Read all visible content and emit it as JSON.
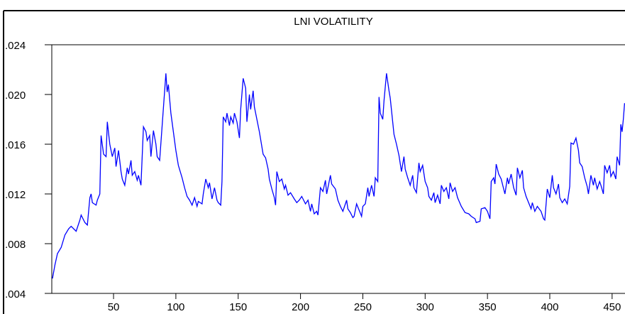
{
  "chart_data": {
    "type": "line",
    "title": "LNI VOLATILITY",
    "x": [
      1,
      3,
      5,
      8,
      11,
      14,
      16,
      20,
      23,
      24,
      27,
      29,
      31,
      32,
      33,
      36,
      37,
      39,
      40,
      42,
      44,
      45,
      47,
      49,
      51,
      52,
      54,
      56,
      57,
      59,
      61,
      62,
      64,
      65,
      67,
      69,
      70,
      72,
      74,
      76,
      77,
      79,
      80,
      82,
      84,
      85,
      87,
      89,
      92,
      93,
      94,
      96,
      98,
      100,
      102,
      105,
      107,
      109,
      111,
      113,
      115,
      117,
      118,
      121,
      122,
      124,
      126,
      127,
      129,
      131,
      133,
      134,
      136,
      137,
      138,
      140,
      141,
      143,
      144,
      146,
      147,
      149,
      151,
      152,
      154,
      156,
      157,
      159,
      160,
      162,
      163,
      165,
      167,
      170,
      172,
      174,
      175,
      177,
      179,
      180,
      181,
      183,
      185,
      187,
      188,
      190,
      192,
      195,
      197,
      199,
      201,
      204,
      206,
      208,
      209,
      211,
      213,
      214,
      216,
      218,
      220,
      221,
      224,
      225,
      228,
      230,
      232,
      234,
      237,
      238,
      240,
      242,
      243,
      245,
      247,
      249,
      250,
      252,
      254,
      255,
      257,
      259,
      260,
      262,
      263,
      264,
      266,
      267,
      269,
      271,
      272,
      275,
      277,
      279,
      281,
      283,
      284,
      286,
      288,
      290,
      291,
      293,
      295,
      296,
      298,
      300,
      302,
      303,
      305,
      307,
      308,
      310,
      312,
      313,
      315,
      317,
      319,
      320,
      322,
      324,
      326,
      329,
      332,
      335,
      337,
      340,
      341,
      344,
      345,
      348,
      350,
      352,
      353,
      355,
      356,
      357,
      359,
      361,
      362,
      364,
      366,
      367,
      369,
      371,
      373,
      374,
      376,
      378,
      379,
      381,
      383,
      385,
      386,
      388,
      390,
      393,
      395,
      396,
      398,
      400,
      402,
      403,
      405,
      407,
      408,
      410,
      412,
      414,
      416,
      417,
      419,
      421,
      423,
      424,
      426,
      428,
      430,
      431,
      433,
      435,
      436,
      438,
      440,
      441,
      443,
      444,
      446,
      448,
      449,
      451,
      453,
      454,
      456,
      457,
      458,
      459,
      460
    ],
    "series": [
      {
        "name": "LNI VOLATILITY",
        "color": "#0000ff",
        "values": [
          0.0052,
          0.0063,
          0.0072,
          0.0077,
          0.0087,
          0.0092,
          0.0094,
          0.009,
          0.0099,
          0.0103,
          0.0097,
          0.0095,
          0.0117,
          0.012,
          0.0113,
          0.0111,
          0.0115,
          0.012,
          0.0167,
          0.0152,
          0.015,
          0.0178,
          0.016,
          0.015,
          0.0157,
          0.0142,
          0.0155,
          0.0138,
          0.0132,
          0.0127,
          0.0141,
          0.0136,
          0.0147,
          0.0135,
          0.0138,
          0.0131,
          0.0135,
          0.0127,
          0.0174,
          0.017,
          0.0163,
          0.0167,
          0.015,
          0.0171,
          0.016,
          0.015,
          0.0147,
          0.0175,
          0.0217,
          0.0202,
          0.0208,
          0.0185,
          0.017,
          0.0155,
          0.0143,
          0.0133,
          0.0125,
          0.0118,
          0.0115,
          0.0111,
          0.0117,
          0.011,
          0.0114,
          0.0112,
          0.012,
          0.0132,
          0.0125,
          0.0129,
          0.0116,
          0.0125,
          0.0115,
          0.0113,
          0.0111,
          0.013,
          0.0182,
          0.0178,
          0.0185,
          0.0175,
          0.0182,
          0.0177,
          0.0185,
          0.0178,
          0.0165,
          0.0188,
          0.0213,
          0.0205,
          0.0178,
          0.02,
          0.0188,
          0.0203,
          0.019,
          0.018,
          0.017,
          0.0152,
          0.0149,
          0.014,
          0.0132,
          0.0124,
          0.0117,
          0.0111,
          0.0138,
          0.013,
          0.0132,
          0.0124,
          0.0127,
          0.0119,
          0.0121,
          0.0116,
          0.0113,
          0.0115,
          0.0118,
          0.0112,
          0.0115,
          0.0106,
          0.0112,
          0.0104,
          0.0106,
          0.0103,
          0.0125,
          0.0122,
          0.0131,
          0.012,
          0.0135,
          0.0128,
          0.0124,
          0.0115,
          0.011,
          0.0106,
          0.0115,
          0.0108,
          0.0105,
          0.0101,
          0.0102,
          0.0112,
          0.0107,
          0.0102,
          0.011,
          0.0112,
          0.0125,
          0.0118,
          0.0127,
          0.0118,
          0.0133,
          0.013,
          0.0198,
          0.0185,
          0.018,
          0.0195,
          0.0217,
          0.0203,
          0.0197,
          0.0168,
          0.016,
          0.0151,
          0.0138,
          0.015,
          0.014,
          0.0133,
          0.0127,
          0.0135,
          0.0125,
          0.0121,
          0.0145,
          0.0138,
          0.0143,
          0.013,
          0.0125,
          0.0118,
          0.0115,
          0.0121,
          0.0113,
          0.0119,
          0.0112,
          0.0127,
          0.0122,
          0.0125,
          0.0116,
          0.0129,
          0.0122,
          0.0125,
          0.0117,
          0.011,
          0.0105,
          0.0104,
          0.0102,
          0.01,
          0.0097,
          0.0098,
          0.0108,
          0.0109,
          0.0106,
          0.01,
          0.013,
          0.0133,
          0.0128,
          0.0144,
          0.0136,
          0.0132,
          0.0128,
          0.012,
          0.0133,
          0.0128,
          0.0136,
          0.0125,
          0.0119,
          0.0141,
          0.0133,
          0.0139,
          0.0125,
          0.0118,
          0.0113,
          0.0108,
          0.0113,
          0.0106,
          0.011,
          0.0106,
          0.01,
          0.0099,
          0.0124,
          0.0117,
          0.0135,
          0.0125,
          0.012,
          0.0128,
          0.0117,
          0.0113,
          0.0116,
          0.0112,
          0.0126,
          0.0161,
          0.016,
          0.0165,
          0.0155,
          0.0145,
          0.0142,
          0.0133,
          0.0126,
          0.012,
          0.0135,
          0.0127,
          0.0133,
          0.0124,
          0.013,
          0.0127,
          0.012,
          0.0143,
          0.0137,
          0.0143,
          0.0134,
          0.0138,
          0.0132,
          0.015,
          0.0143,
          0.0176,
          0.017,
          0.018,
          0.0193
        ]
      }
    ],
    "xlim": [
      0,
      460
    ],
    "xticks": [
      50,
      100,
      150,
      200,
      250,
      300,
      350,
      400,
      450
    ],
    "ylim": [
      0.004,
      0.024
    ],
    "yticks": [
      {
        "value": 0.004,
        "label": ".004"
      },
      {
        "value": 0.008,
        "label": ".008"
      },
      {
        "value": 0.012,
        "label": ".012"
      },
      {
        "value": 0.016,
        "label": ".016"
      },
      {
        "value": 0.02,
        "label": ".020"
      },
      {
        "value": 0.024,
        "label": ".024"
      }
    ],
    "grid": false
  }
}
